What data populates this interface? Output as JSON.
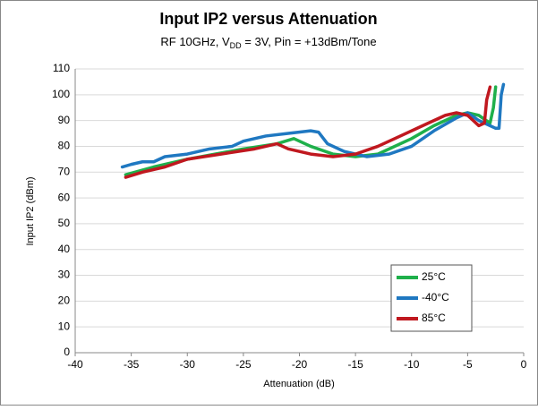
{
  "chart_data": {
    "type": "line",
    "title": "Input IP2 versus Attenuation",
    "subtitle": [
      "RF 10GHz, V",
      "DD",
      " = 3V, Pin = +13dBm/Tone"
    ],
    "x_label": "Attenuation (dB)",
    "y_label": "Input IP2 (dBm)",
    "xlim": [
      -40,
      0
    ],
    "xticks": [
      -40,
      -35,
      -30,
      -25,
      -20,
      -15,
      -10,
      -5,
      0
    ],
    "ylim": [
      0,
      110
    ],
    "yticks": [
      0,
      10,
      20,
      30,
      40,
      50,
      60,
      70,
      80,
      90,
      100,
      110
    ],
    "grid": true,
    "legend": "lower right",
    "series": [
      {
        "name": "25°C",
        "color": "#1fb04b",
        "x": [
          -35.5,
          -33,
          -30,
          -25,
          -22,
          -20.5,
          -19,
          -17,
          -15,
          -13,
          -10,
          -8,
          -6,
          -5,
          -4,
          -3,
          -2.7,
          -2.5
        ],
        "values": [
          69,
          72,
          75,
          79,
          81,
          83,
          80,
          77,
          76,
          77,
          83,
          88,
          92,
          93,
          92,
          89,
          95,
          103
        ]
      },
      {
        "name": "-40°C",
        "color": "#1f78c1",
        "x": [
          -35.8,
          -35,
          -34,
          -33,
          -32,
          -30,
          -28,
          -26,
          -25,
          -23,
          -21,
          -19,
          -18.3,
          -17.5,
          -16,
          -14,
          -12,
          -10,
          -8,
          -6,
          -5,
          -4,
          -2.5,
          -2.2,
          -2,
          -1.8
        ],
        "values": [
          72,
          73,
          74,
          74,
          76,
          77,
          79,
          80,
          82,
          84,
          85,
          86,
          85.5,
          81,
          78,
          76,
          77,
          80,
          86,
          91,
          93,
          90,
          87,
          87,
          100,
          104
        ]
      },
      {
        "name": "85°C",
        "color": "#c0181f",
        "x": [
          -35.5,
          -34,
          -32,
          -30,
          -27,
          -24,
          -22,
          -21,
          -19,
          -17,
          -15,
          -13,
          -11,
          -9,
          -7,
          -6,
          -5,
          -4.5,
          -4,
          -3.5,
          -3.3,
          -3
        ],
        "values": [
          68,
          70,
          72,
          75,
          77,
          79,
          81,
          79,
          77,
          76,
          77,
          80,
          84,
          88,
          92,
          93,
          92,
          90,
          88,
          89,
          98,
          103
        ]
      }
    ]
  }
}
